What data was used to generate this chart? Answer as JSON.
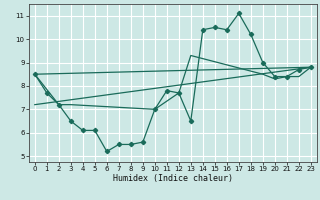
{
  "background_color": "#cde8e5",
  "grid_color": "#ffffff",
  "line_color": "#1a6b5a",
  "xlabel": "Humidex (Indice chaleur)",
  "xlim": [
    -0.5,
    23.5
  ],
  "ylim": [
    4.75,
    11.5
  ],
  "yticks": [
    5,
    6,
    7,
    8,
    9,
    10,
    11
  ],
  "xticks": [
    0,
    1,
    2,
    3,
    4,
    5,
    6,
    7,
    8,
    9,
    10,
    11,
    12,
    13,
    14,
    15,
    16,
    17,
    18,
    19,
    20,
    21,
    22,
    23
  ],
  "line1_x": [
    0,
    1,
    2,
    3,
    4,
    5,
    6,
    7,
    8,
    9,
    10,
    11,
    12,
    13,
    14,
    15,
    16,
    17,
    18,
    19,
    20,
    21,
    22,
    23
  ],
  "line1_y": [
    8.5,
    7.7,
    7.2,
    6.5,
    6.1,
    6.1,
    5.2,
    5.5,
    5.5,
    5.6,
    7.0,
    7.8,
    7.7,
    6.5,
    10.4,
    10.5,
    10.4,
    11.1,
    10.2,
    9.0,
    8.4,
    8.4,
    8.7,
    8.8
  ],
  "line2_x": [
    0,
    2,
    3,
    10,
    12,
    13,
    19,
    20,
    21,
    22,
    23
  ],
  "line2_y": [
    8.5,
    7.2,
    7.2,
    7.0,
    7.7,
    9.3,
    8.5,
    8.3,
    8.4,
    8.4,
    8.8
  ],
  "line3_x": [
    0,
    23
  ],
  "line3_y": [
    7.2,
    8.8
  ],
  "line4_x": [
    0,
    23
  ],
  "line4_y": [
    8.5,
    8.8
  ]
}
